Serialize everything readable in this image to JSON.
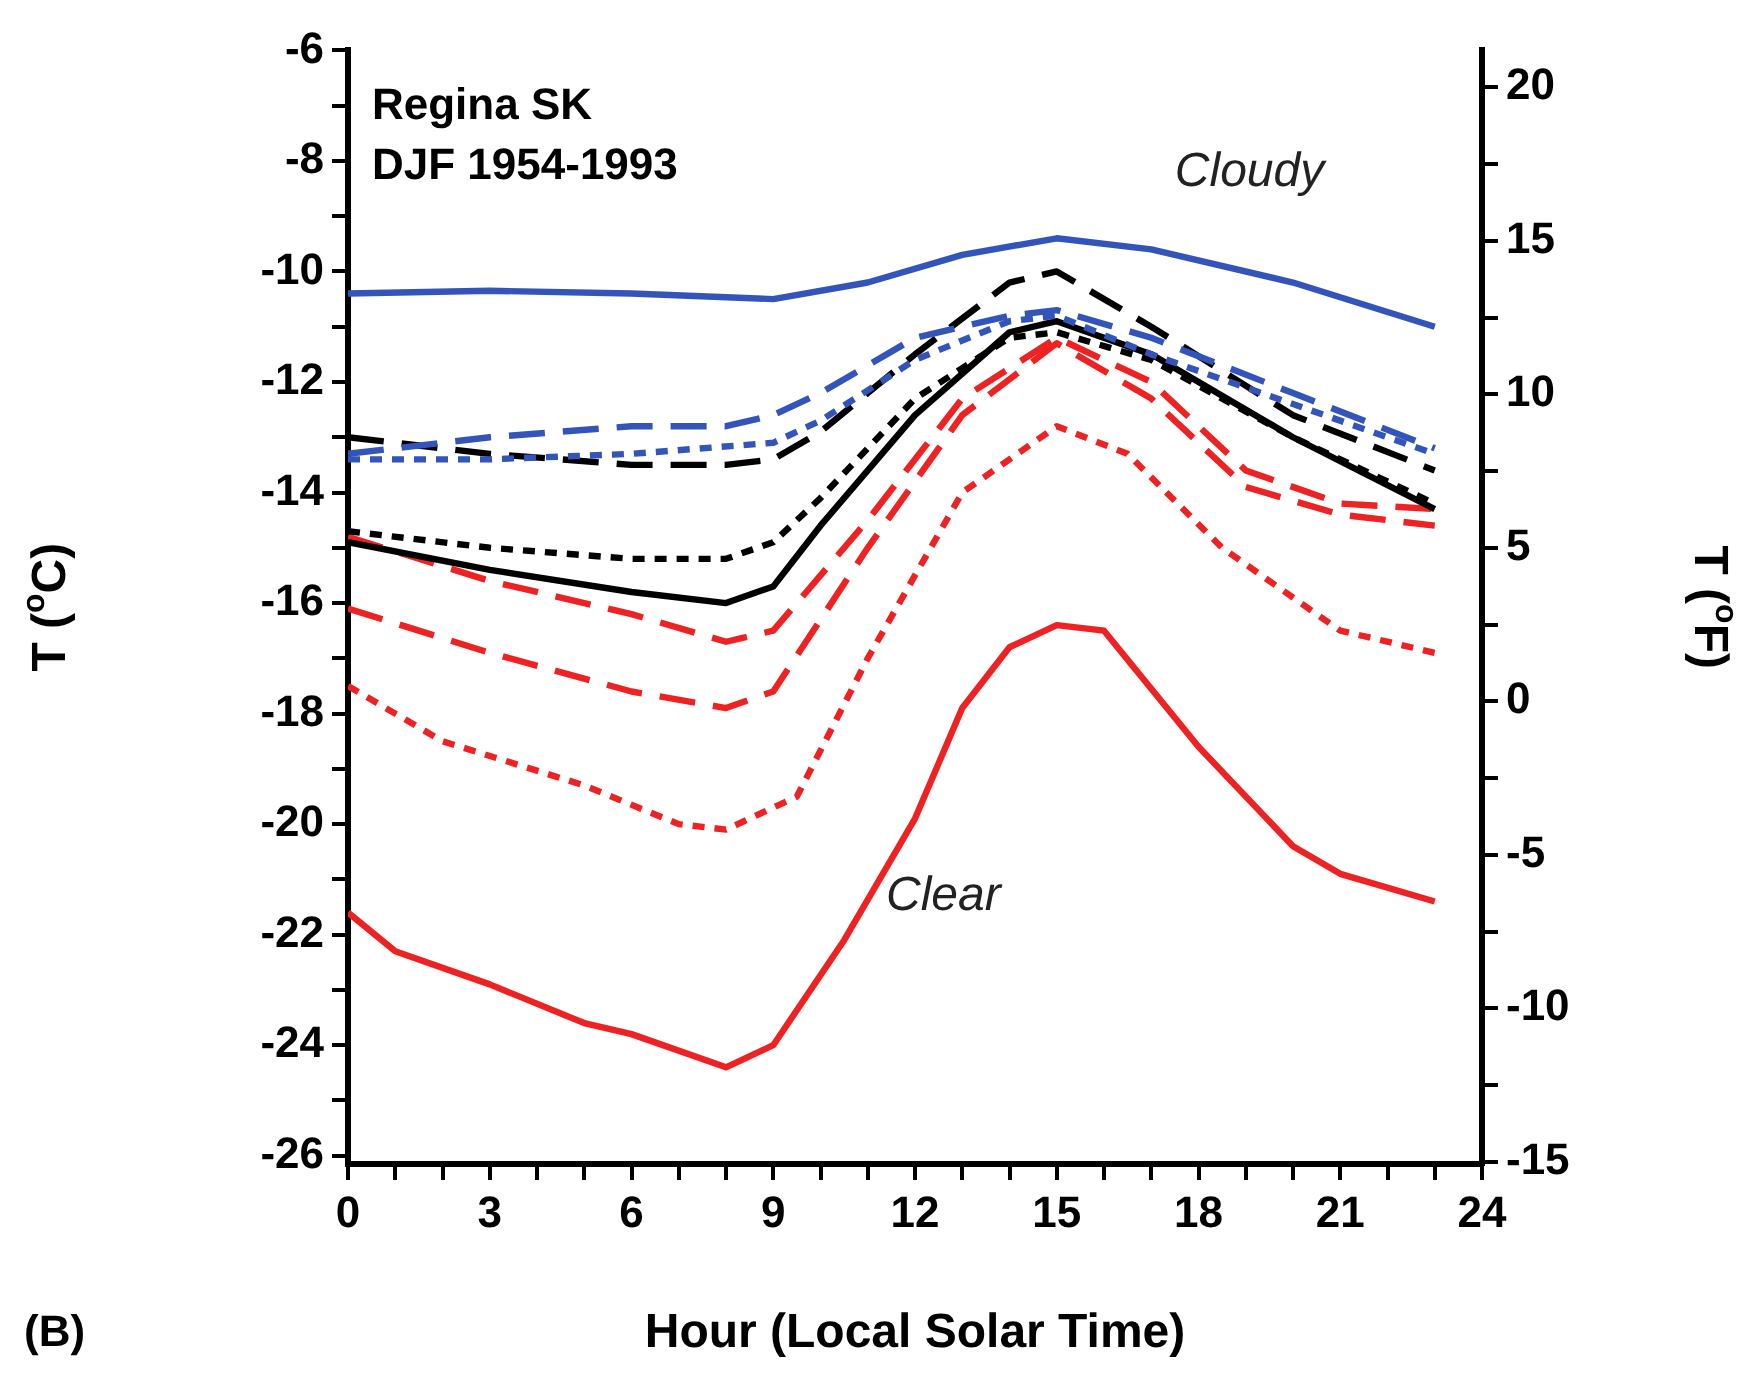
{
  "chart_data": {
    "type": "line",
    "xlabel": "Hour (Local Solar Time)",
    "ylabel": "T ($^{o}$C)",
    "y2label": "T ($^{o}$F)",
    "annotations": [
      "Regina SK",
      "DJF 1954-1993",
      "(B)",
      "Cloudy",
      "Clear"
    ],
    "xlim": [
      0,
      24
    ],
    "xticks": [
      0,
      {
        "value": 1,
        "label": null
      },
      {
        "value": 2,
        "label": null
      },
      3,
      {
        "value": 4,
        "label": null
      },
      {
        "value": 5,
        "label": null
      },
      6,
      {
        "value": 7,
        "label": null
      },
      {
        "value": 8,
        "label": null
      },
      9,
      {
        "value": 10,
        "label": null
      },
      {
        "value": 11,
        "label": null
      },
      12,
      {
        "value": 13,
        "label": null
      },
      {
        "value": 14,
        "label": null
      },
      15,
      {
        "value": 16,
        "label": null
      },
      {
        "value": 17,
        "label": null
      },
      18,
      {
        "value": 19,
        "label": null
      },
      {
        "value": 20,
        "label": null
      },
      21,
      {
        "value": 22,
        "label": null
      },
      {
        "value": 23,
        "label": null
      },
      24
    ],
    "ylim": [
      -26.15,
      -6
    ],
    "yticks": [
      -26,
      {
        "value": -25,
        "label": null
      },
      -24,
      {
        "value": -23,
        "label": null
      },
      -22,
      {
        "value": -21,
        "label": null
      },
      -20,
      {
        "value": -19,
        "label": null
      },
      -18,
      {
        "value": -17,
        "label": null
      },
      -16,
      {
        "value": -15,
        "label": null
      },
      -14,
      {
        "value": -13,
        "label": null
      },
      -12,
      {
        "value": -11,
        "label": null
      },
      -10,
      {
        "value": -9,
        "label": null
      },
      -8,
      {
        "value": -7,
        "label": null
      },
      -6
    ],
    "y2lim": [
      -15.07,
      21.2
    ],
    "y2ticks": [
      -15,
      {
        "value": -12.5,
        "label": null
      },
      -10,
      {
        "value": -7.5,
        "label": null
      },
      -5,
      {
        "value": -2.5,
        "label": null
      },
      0,
      {
        "value": 2.5,
        "label": null
      },
      5,
      {
        "value": 7.5,
        "label": null
      },
      10,
      {
        "value": 12.5,
        "label": null
      },
      15,
      {
        "value": 17.5,
        "label": null
      },
      20
    ],
    "grid": false,
    "legend": false,
    "series": [
      {
        "color": "#3355bb",
        "line_style": "solid",
        "x": [
          0,
          3,
          6,
          9,
          11,
          13,
          15,
          17,
          20,
          23
        ],
        "values": [
          -10.4,
          -10.35,
          -10.4,
          -10.5,
          -10.2,
          -9.7,
          -9.4,
          -9.6,
          -10.2,
          -11.0
        ]
      },
      {
        "color": "#3355bb",
        "line_style": "dashed",
        "x": [
          0,
          3,
          6,
          8,
          9,
          10,
          12,
          14,
          15,
          17,
          20,
          23
        ],
        "values": [
          -13.3,
          -13.0,
          -12.8,
          -12.8,
          -12.6,
          -12.2,
          -11.2,
          -10.8,
          -10.7,
          -11.2,
          -12.2,
          -13.2
        ]
      },
      {
        "color": "#3355bb",
        "line_style": "dotted",
        "x": [
          0,
          3,
          6,
          9,
          10,
          12,
          14,
          15,
          17,
          20,
          23
        ],
        "values": [
          -13.4,
          -13.4,
          -13.3,
          -13.1,
          -12.7,
          -11.6,
          -10.9,
          -10.8,
          -11.5,
          -12.4,
          -13.3
        ]
      },
      {
        "color": "#000000",
        "line_style": "dashed",
        "x": [
          0,
          3,
          6,
          8,
          9,
          10,
          12,
          14,
          15,
          17,
          20,
          23
        ],
        "values": [
          -13.0,
          -13.3,
          -13.5,
          -13.5,
          -13.4,
          -12.9,
          -11.5,
          -10.2,
          -10.0,
          -11.0,
          -12.6,
          -13.6
        ]
      },
      {
        "color": "#000000",
        "line_style": "dotted",
        "x": [
          0,
          3,
          6,
          8,
          9,
          10,
          12,
          14,
          15,
          17,
          20,
          23
        ],
        "values": [
          -14.7,
          -15.0,
          -15.2,
          -15.2,
          -14.9,
          -14.1,
          -12.3,
          -11.2,
          -11.1,
          -11.6,
          -13.0,
          -14.2
        ]
      },
      {
        "color": "#000000",
        "line_style": "solid",
        "x": [
          0,
          3,
          6,
          8,
          9,
          10,
          12,
          14,
          15,
          17,
          20,
          23
        ],
        "values": [
          -14.9,
          -15.4,
          -15.8,
          -16.0,
          -15.7,
          -14.6,
          -12.6,
          -11.1,
          -10.9,
          -11.5,
          -13.0,
          -14.3
        ]
      },
      {
        "color": "#ee2222",
        "line_style": "dashed",
        "x": [
          0,
          3,
          6,
          8,
          9,
          11,
          13,
          15,
          17,
          19,
          21,
          23
        ],
        "values": [
          -14.8,
          -15.6,
          -16.2,
          -16.7,
          -16.5,
          -14.5,
          -12.3,
          -11.2,
          -12.0,
          -13.6,
          -14.2,
          -14.3
        ]
      },
      {
        "color": "#ee2222",
        "line_style": "dashed",
        "x": [
          0,
          3,
          6,
          8,
          9,
          11,
          13,
          15,
          17,
          19,
          21,
          23
        ],
        "values": [
          -16.1,
          -16.9,
          -17.6,
          -17.9,
          -17.6,
          -15.0,
          -12.6,
          -11.3,
          -12.3,
          -13.9,
          -14.4,
          -14.6
        ]
      },
      {
        "color": "#ee2222",
        "line_style": "dotted",
        "x": [
          0,
          2,
          5,
          7,
          8,
          9.5,
          11,
          13,
          15,
          16.5,
          18.5,
          21,
          23
        ],
        "values": [
          -17.5,
          -18.5,
          -19.3,
          -20.0,
          -20.1,
          -19.5,
          -17.0,
          -14.0,
          -12.8,
          -13.3,
          -15.0,
          -16.5,
          -16.9
        ]
      },
      {
        "color": "#ee2222",
        "line_style": "solid",
        "x": [
          0,
          1,
          3,
          5,
          6,
          8,
          9,
          10.5,
          12,
          13,
          14,
          15,
          16,
          18,
          20,
          21,
          23
        ],
        "values": [
          -21.6,
          -22.3,
          -22.9,
          -23.6,
          -23.8,
          -24.4,
          -24.0,
          -22.1,
          -19.9,
          -17.9,
          -16.8,
          -16.4,
          -16.5,
          -18.6,
          -20.4,
          -20.9,
          -21.4
        ]
      }
    ]
  }
}
